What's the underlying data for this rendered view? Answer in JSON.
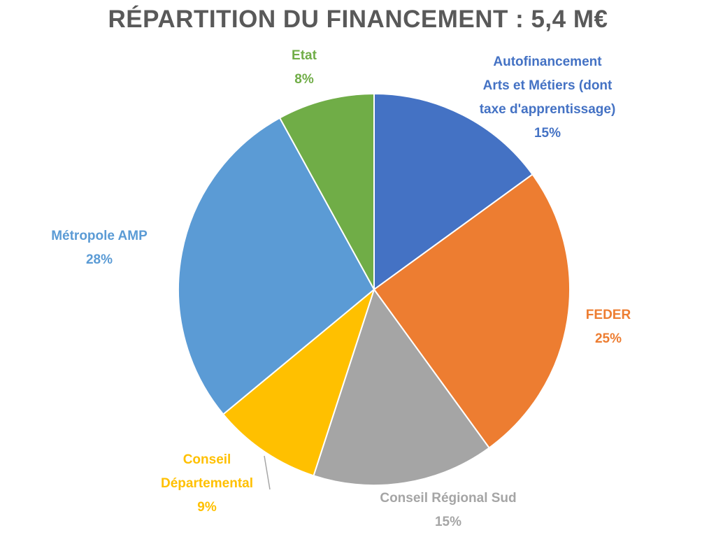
{
  "chart_data": {
    "type": "pie",
    "title": "RÉPARTITION DU FINANCEMENT : 5,4 M€",
    "slices": [
      {
        "name": "Autofinancement Arts et Métiers (dont taxe d'apprentissage)",
        "name_lines": [
          "Autofinancement",
          "Arts et Métiers (dont",
          "taxe d'apprentissage)"
        ],
        "value": 15,
        "value_label": "15%",
        "color": "#4472C4"
      },
      {
        "name": "FEDER",
        "name_lines": [
          "FEDER"
        ],
        "value": 25,
        "value_label": "25%",
        "color": "#ED7D31"
      },
      {
        "name": "Conseil Régional Sud",
        "name_lines": [
          "Conseil Régional Sud"
        ],
        "value": 15,
        "value_label": "15%",
        "color": "#A5A5A5"
      },
      {
        "name": "Conseil Départemental",
        "name_lines": [
          "Conseil",
          "Départemental"
        ],
        "value": 9,
        "value_label": "9%",
        "color": "#FFC000"
      },
      {
        "name": "Métropole AMP",
        "name_lines": [
          "Métropole AMP"
        ],
        "value": 28,
        "value_label": "28%",
        "color": "#5B9BD5"
      },
      {
        "name": "Etat",
        "name_lines": [
          "Etat"
        ],
        "value": 8,
        "value_label": "8%",
        "color": "#70AD47"
      }
    ],
    "start_angle_deg": 0,
    "direction": "clockwise",
    "legend": "none",
    "data_labels": "outside"
  }
}
